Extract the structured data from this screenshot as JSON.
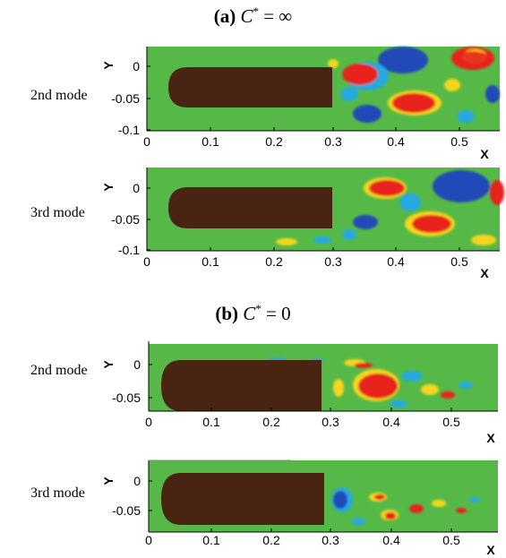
{
  "sections": [
    {
      "label": "(a)",
      "condition": "C* = ∞",
      "cstar": "C",
      "sup": "*",
      "rhs": " = ∞",
      "panels": [
        {
          "mode": "2nd mode",
          "yticks": [
            "0",
            "-0.05",
            "-0.1"
          ],
          "xticks": [
            "0",
            "0.1",
            "0.2",
            "0.3",
            "0.4",
            "0.5"
          ],
          "ylabel": "Y",
          "xlabel": "X"
        },
        {
          "mode": "3rd mode",
          "yticks": [
            "0",
            "-0.05",
            "-0.1"
          ],
          "xticks": [
            "0",
            "0.1",
            "0.2",
            "0.3",
            "0.4",
            "0.5"
          ],
          "ylabel": "Y",
          "xlabel": "X"
        }
      ]
    },
    {
      "label": "(b)",
      "condition": "C* = 0",
      "cstar": "C",
      "sup": "*",
      "rhs": " = 0",
      "panels": [
        {
          "mode": "2nd mode",
          "yticks": [
            "0",
            "-0.05"
          ],
          "xticks": [
            "0",
            "0.1",
            "0.2",
            "0.3",
            "0.4",
            "0.5"
          ],
          "ylabel": "Y",
          "xlabel": "X"
        },
        {
          "mode": "3rd mode",
          "yticks": [
            "0",
            "-0.05"
          ],
          "xticks": [
            "0",
            "0.1",
            "0.2",
            "0.3",
            "0.4",
            "0.5"
          ],
          "ylabel": "Y",
          "xlabel": "X"
        }
      ]
    }
  ],
  "colors": {
    "background_field": "#56b947",
    "body": "#4a2412",
    "positive_strong": "#e8231c",
    "positive_weak": "#f5d61b",
    "negative_strong": "#2348b8",
    "negative_weak": "#27a9e0"
  }
}
